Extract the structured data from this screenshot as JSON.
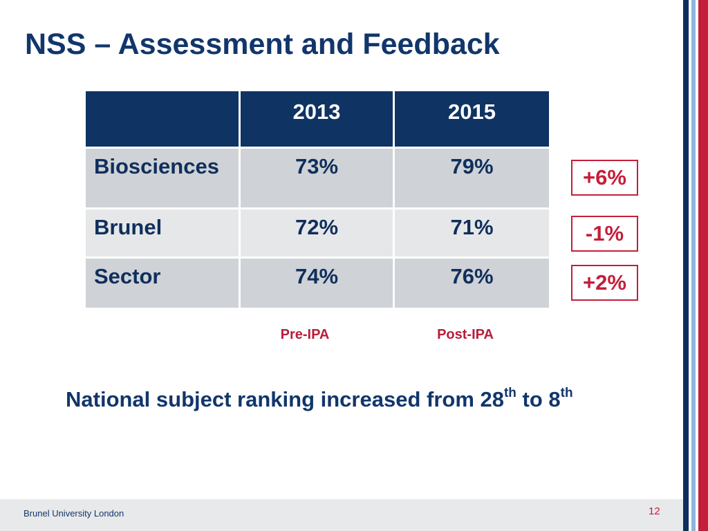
{
  "slide": {
    "title": "NSS – Assessment and Feedback",
    "table": {
      "headers": [
        "",
        "2013",
        "2015"
      ],
      "rows": [
        {
          "label": "Biosciences",
          "y2013": "73%",
          "y2015": "79%",
          "change": "+6%"
        },
        {
          "label": "Brunel",
          "y2013": "72%",
          "y2015": "71%",
          "change": "-1%"
        },
        {
          "label": "Sector",
          "y2013": "74%",
          "y2015": "76%",
          "change": "+2%"
        }
      ]
    },
    "labels": {
      "pre": "Pre-IPA",
      "post": "Post-IPA"
    },
    "summary": {
      "text_a": "National subject ranking increased from 28",
      "sup_a": "th",
      "text_b": " to 8",
      "sup_b": "th"
    },
    "footer": {
      "org": "Brunel University London",
      "page": "12"
    },
    "colors": {
      "navy": "#0f3363",
      "red": "#c41e3a",
      "light_blue": "#8fb4df"
    }
  }
}
